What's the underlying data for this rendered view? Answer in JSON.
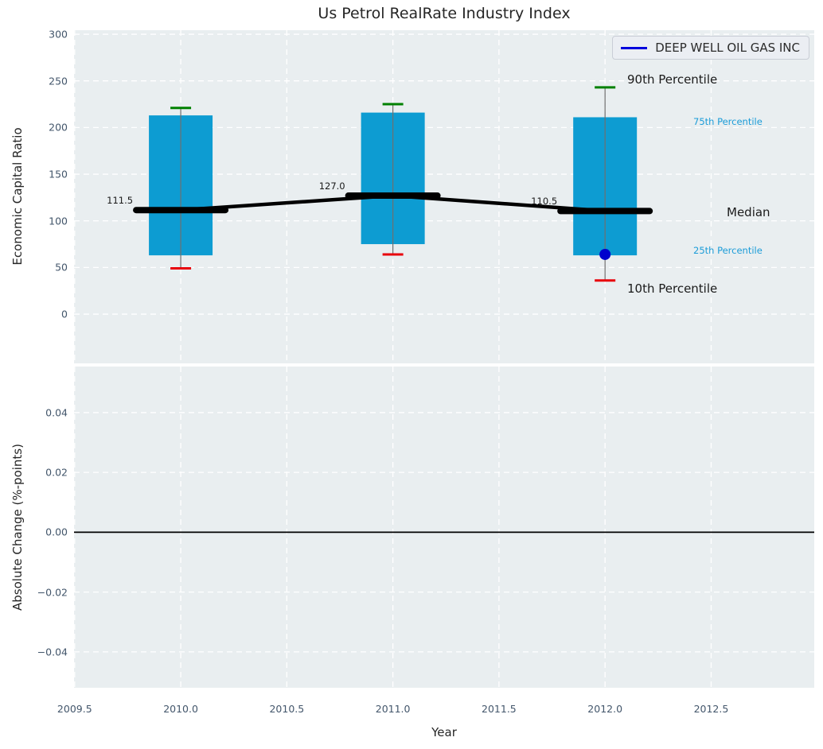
{
  "figure": {
    "title": "Us Petrol RealRate Industry Index",
    "background": "#ffffff",
    "axes_background": "#e9eef0"
  },
  "legend": {
    "label": "DEEP WELL OIL GAS INC",
    "line_color": "#0000dd",
    "position": "upper right"
  },
  "annotations": {
    "p90": "90th Percentile",
    "p75": "75th Percentile",
    "median": "Median",
    "p25": "25th Percentile",
    "p10": "10th Percentile"
  },
  "chart_data": [
    {
      "type": "boxplot",
      "title": "Us Petrol RealRate Industry Index",
      "xlabel": "Year",
      "ylabel": "Economic Capital Ratio",
      "grid": "dashed white on",
      "legend_position": "upper right",
      "xlim": [
        2009.497,
        2012.986
      ],
      "ylim": [
        -52.8,
        304.3
      ],
      "xticks": [
        2009.5,
        2010.0,
        2010.5,
        2011.0,
        2011.5,
        2012.0,
        2012.5
      ],
      "xtick_labels": [
        "2009.5",
        "2010.0",
        "2010.5",
        "2011.0",
        "2011.5",
        "2012.0",
        "2012.5"
      ],
      "yticks": [
        0,
        50,
        100,
        150,
        200,
        250,
        300
      ],
      "ytick_labels": [
        "0",
        "50",
        "100",
        "150",
        "200",
        "250",
        "300"
      ],
      "box_color": "#0d9cd2",
      "whisker_color": "#6f6f6f",
      "cap_top_color": "#008000",
      "cap_bottom_color": "#e8000b",
      "median_color": "#000000",
      "boxes": [
        {
          "year": 2010,
          "p10": 49,
          "p25": 63,
          "median": 111.5,
          "p75": 213,
          "p90": 221,
          "label": "111.5"
        },
        {
          "year": 2011,
          "p10": 64,
          "p25": 75,
          "median": 127.0,
          "p75": 216,
          "p90": 225,
          "label": "127.0"
        },
        {
          "year": 2012,
          "p10": 36,
          "p25": 63,
          "median": 110.5,
          "p75": 211,
          "p90": 243,
          "label": "110.5"
        }
      ],
      "company_series": {
        "name": "DEEP WELL OIL GAS INC",
        "color": "#0000cd",
        "points": [
          {
            "year": 2012,
            "value": 64
          }
        ]
      }
    },
    {
      "type": "line",
      "ylabel": "Absolute Change (%-points)",
      "grid": "dashed white on",
      "xlim": [
        2009.497,
        2012.986
      ],
      "ylim": [
        -0.052,
        0.0554
      ],
      "yticks": [
        0.04,
        0.02,
        0.0,
        -0.02,
        -0.04
      ],
      "ytick_labels": [
        "0.04",
        "0.02",
        "0.00",
        "−0.02",
        "−0.04"
      ],
      "zero_line": 0.0,
      "series": []
    }
  ]
}
